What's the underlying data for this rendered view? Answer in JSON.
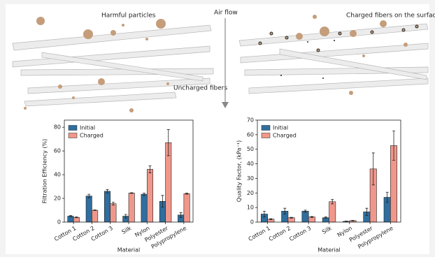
{
  "illustration": {
    "left_title": "Harmful particles",
    "arrow_label": "Air flow",
    "fiber_label": "Uncharged fibers",
    "right_title": "Charged fibers on the surface"
  },
  "chart_data": [
    {
      "type": "bar",
      "ylabel": "Filtration Efficiency (%)",
      "xlabel": "Material",
      "categories": [
        "Cotton 1",
        "Cotton 2",
        "Cotton 3",
        "Silk",
        "Nylon",
        "Polyester",
        "Polypropylene"
      ],
      "series": [
        {
          "name": "Initial",
          "color": "#2f6e9e",
          "values": [
            5,
            22,
            26,
            5,
            23.5,
            17.5,
            6
          ],
          "errors": [
            0.5,
            1.5,
            1.5,
            1.5,
            1,
            5,
            2
          ]
        },
        {
          "name": "Charged",
          "color": "#f0978b",
          "values": [
            4,
            10,
            15.5,
            24.5,
            44.5,
            67,
            24
          ],
          "errors": [
            0.3,
            0.3,
            1.2,
            0.3,
            3,
            11,
            0.5
          ]
        }
      ],
      "ylim": [
        0,
        86
      ],
      "yticks": [
        0,
        20,
        40,
        60,
        80
      ],
      "legend": "upper left"
    },
    {
      "type": "bar",
      "ylabel": "Quality Factor, (kPa⁻¹)",
      "xlabel": "Material",
      "categories": [
        "Cotton 1",
        "Cotton 2",
        "Cotton 3",
        "Silk",
        "Nylon",
        "Polyester",
        "Polypropylene"
      ],
      "series": [
        {
          "name": "Initial",
          "color": "#2f6e9e",
          "values": [
            5.5,
            7.5,
            7.5,
            3,
            0.5,
            7,
            17
          ],
          "errors": [
            2,
            2,
            0.7,
            0.5,
            0.2,
            2.5,
            3.5
          ]
        },
        {
          "name": "Charged",
          "color": "#f0978b",
          "values": [
            2,
            3,
            3.5,
            14,
            1,
            36.5,
            52.5
          ],
          "errors": [
            0.3,
            0.3,
            0.3,
            1.5,
            0.2,
            11,
            10
          ]
        }
      ],
      "ylim": [
        0,
        70
      ],
      "yticks": [
        0,
        10,
        20,
        30,
        40,
        50,
        60,
        70
      ],
      "legend": "upper left"
    }
  ]
}
